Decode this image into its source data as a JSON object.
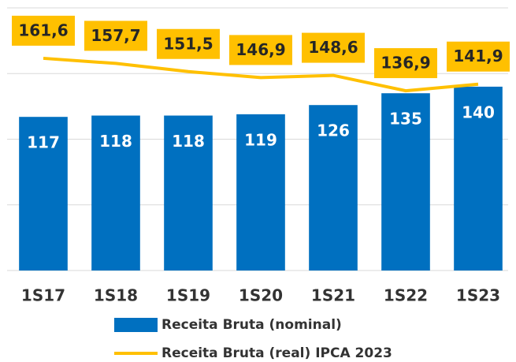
{
  "chart_data": {
    "type": "bar_line",
    "categories": [
      "1S17",
      "1S18",
      "1S19",
      "1S20",
      "1S21",
      "1S22",
      "1S23"
    ],
    "series": [
      {
        "name": "Receita Bruta (nominal)",
        "type": "bar",
        "color": "#0070c0",
        "values": [
          117,
          118,
          118,
          119,
          126,
          135,
          140
        ]
      },
      {
        "name": "Receita Bruta (real) IPCA 2023",
        "type": "line",
        "color": "#ffc000",
        "values": [
          161.6,
          157.7,
          151.5,
          146.9,
          148.6,
          136.9,
          141.9
        ],
        "value_labels": [
          "161,6",
          "157,7",
          "151,5",
          "146,9",
          "148,6",
          "136,9",
          "141,9"
        ]
      }
    ],
    "ylim": [
      0,
      200
    ],
    "yticks": [
      0,
      50,
      100,
      150,
      200
    ],
    "grid": true,
    "legend": "bottom"
  }
}
